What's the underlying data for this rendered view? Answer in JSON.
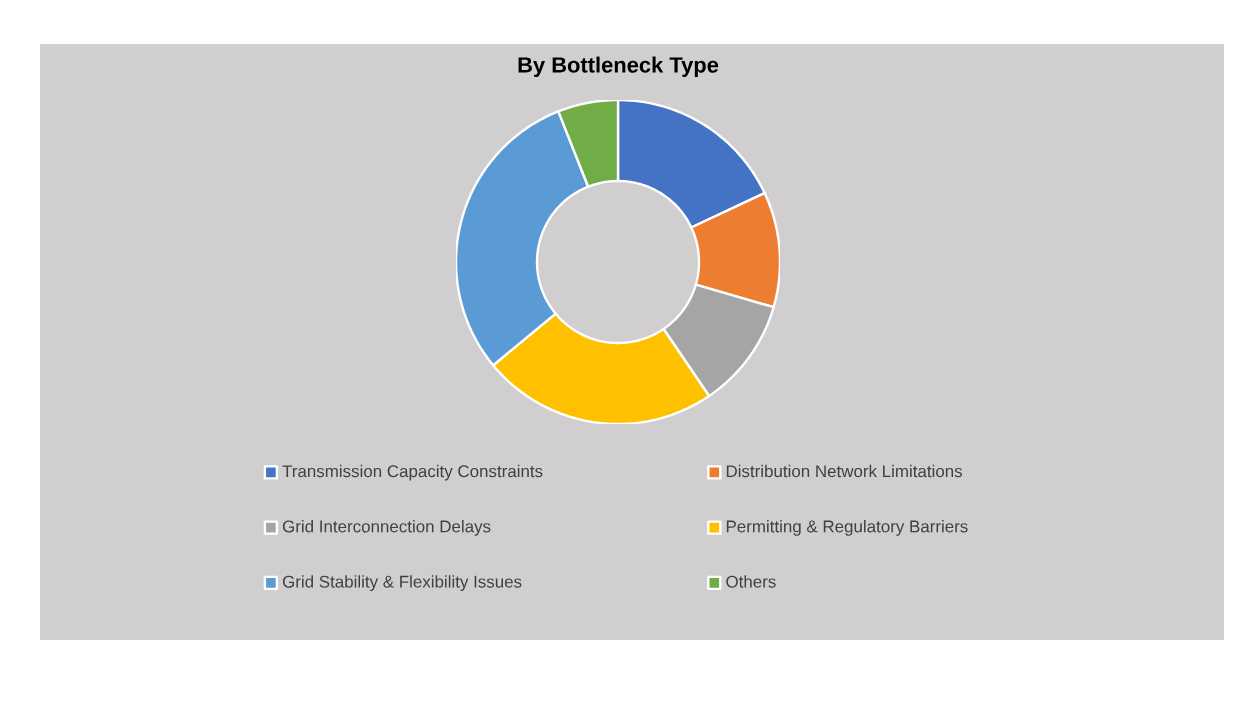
{
  "chart_data": {
    "type": "donut",
    "title": "By Bottleneck Type",
    "categories": [
      "Transmission Capacity Constraints",
      "Distribution Network Limitations",
      "Grid Interconnection Delays",
      "Permitting & Regulatory Barriers",
      "Grid Stability & Flexibility Issues",
      "Others"
    ],
    "values": [
      18,
      11.5,
      11,
      23.5,
      30,
      6
    ],
    "colors": [
      "#4472c4",
      "#ed7d31",
      "#a5a5a5",
      "#ffc000",
      "#5b9bd5",
      "#70ad47"
    ],
    "legend": "bottom"
  }
}
